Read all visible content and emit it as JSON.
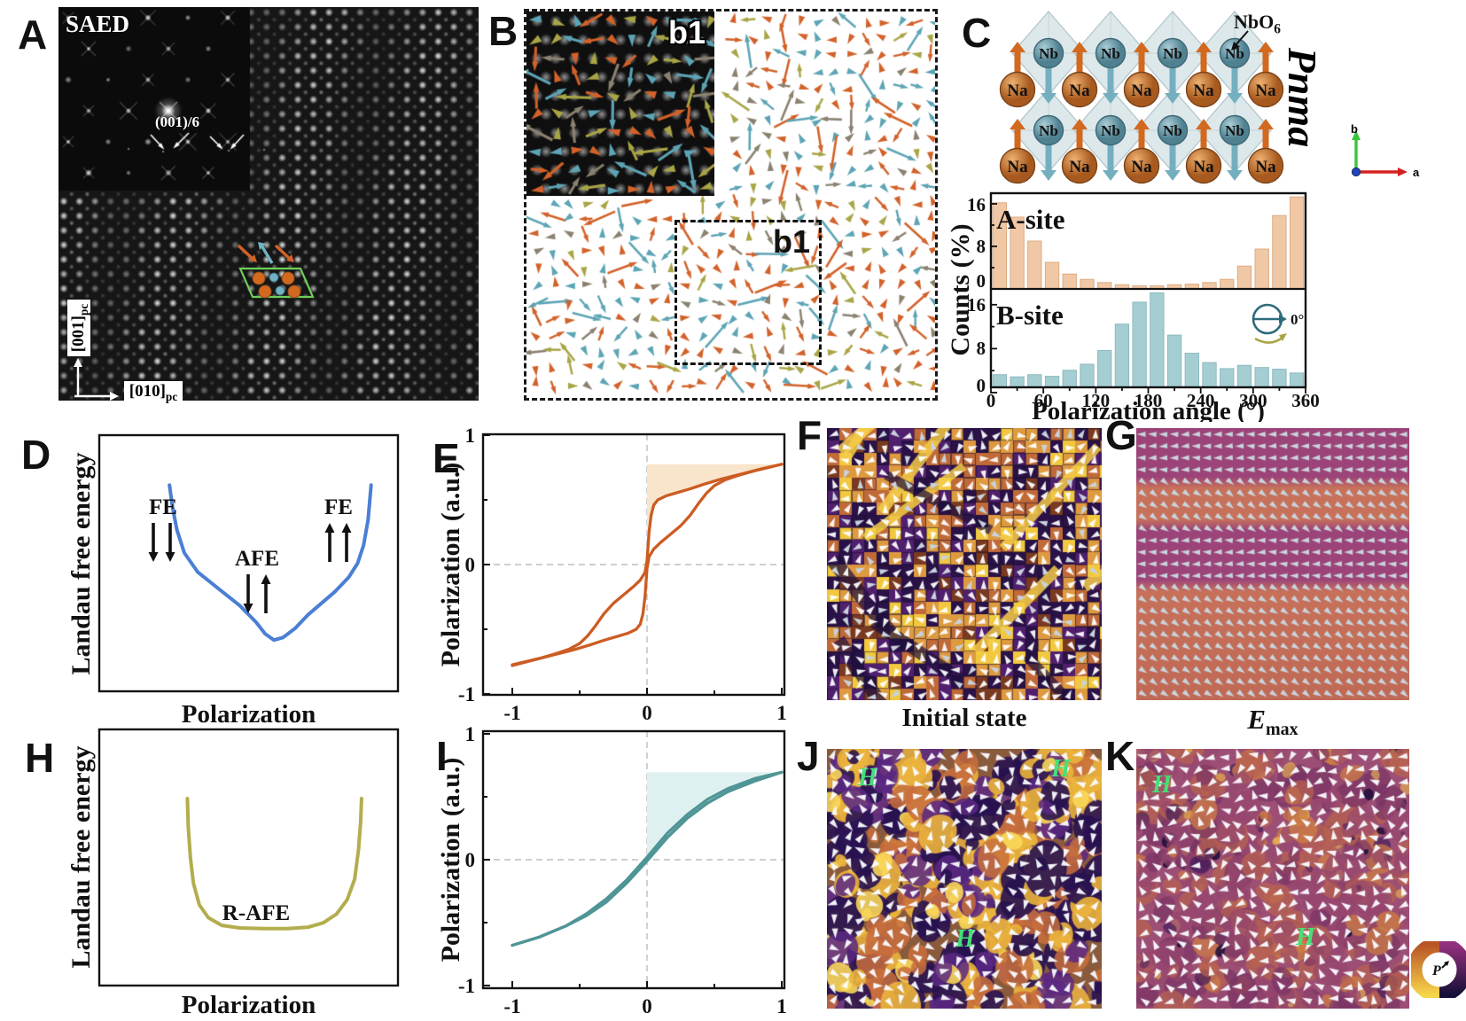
{
  "panels": {
    "a": "A",
    "b": "B",
    "c": "C",
    "d": "D",
    "e": "E",
    "f": "F",
    "g": "G",
    "h": "H",
    "i": "I",
    "j": "J",
    "k": "K"
  },
  "panel_a": {
    "saed_label": "SAED",
    "reflection_label": "(001)/6",
    "axis_v_main": "[001]",
    "axis_v_sub": "pc",
    "axis_h_main": "[010]",
    "axis_h_sub": "pc"
  },
  "panel_b": {
    "inset_label": "b1",
    "box_label": "b1"
  },
  "panel_c": {
    "atom_a_label": "Na",
    "atom_b_label": "Nb",
    "nbo_main": "NbO",
    "nbo_sub": "6",
    "space_group": "Pnma",
    "axis_a": "a",
    "axis_b": "b",
    "a_site": "A-site",
    "b_site": "B-site",
    "angle_ref": "0°",
    "ylabel": "Counts (%)",
    "xlabel": "Polarization angle (°)",
    "yticks": [
      "0",
      "8",
      "16"
    ],
    "xticks": [
      "0",
      "60",
      "120",
      "180",
      "240",
      "300",
      "360"
    ]
  },
  "panel_d": {
    "ylabel": "Landau free energy",
    "xlabel": "Polarization",
    "fe_left": "FE",
    "afe": "AFE",
    "fe_right": "FE"
  },
  "panel_e": {
    "ylabel": "Polarization (a.u.)",
    "yticks": [
      "1",
      "0",
      "-1"
    ],
    "xticks": [
      "-1",
      "0",
      "1"
    ]
  },
  "panel_f": {
    "caption": "Initial state"
  },
  "panel_g": {
    "caption_main": "E",
    "caption_sub": "max"
  },
  "panel_h": {
    "ylabel": "Landau free energy",
    "xlabel": "Polarization",
    "curve_label": "R-AFE"
  },
  "panel_i": {
    "ylabel": "Polarization (a.u.)",
    "yticks": [
      "1",
      "0",
      "-1"
    ],
    "xticks": [
      "-1",
      "0",
      "1"
    ]
  },
  "panel_j": {
    "h1": "H",
    "h2": "H",
    "h3": "H"
  },
  "panel_k": {
    "h1": "H",
    "h2": "H"
  },
  "wheel": {
    "label": "P"
  },
  "colors": {
    "arrow_orange": "#d2622a",
    "arrow_teal": "#5da4b5",
    "arrow_olive": "#a8a546",
    "arrow_gray": "#8b8170",
    "na_sphere": "#c9752f",
    "nb_sphere": "#63929f",
    "octahedron": "#dce8eb",
    "a_site_bar": "#f0c8a6",
    "b_site_bar": "#a5ced3",
    "landau_fe_curve": "#4a7fd4",
    "landau_rafe_curve": "#b3ad4e",
    "loop_afe_curve": "#cc5c22",
    "loop_afe_shade": "#f9e4cc",
    "loop_rafe_curve": "#4f9596",
    "loop_rafe_shade": "#dff0f0",
    "h_marker_green": "#45e077",
    "axis_b_green": "#3bc43b",
    "axis_a_red": "#d42020",
    "axis_c_blue": "#2244bb"
  },
  "chart_data": [
    {
      "id": "hist_a_site",
      "type": "bar",
      "title": "A-site",
      "xlabel": "Polarization angle (°)",
      "ylabel": "Counts (%)",
      "x_bin_start": 0,
      "x_bin_width": 20,
      "xlim": [
        0,
        360
      ],
      "yticks": [
        0,
        8,
        16
      ],
      "values": [
        16.2,
        13.5,
        9.0,
        5.0,
        2.8,
        1.8,
        1.2,
        0.8,
        0.6,
        0.6,
        0.8,
        0.9,
        1.2,
        1.8,
        4.3,
        7.5,
        13.8,
        17.3
      ]
    },
    {
      "id": "hist_b_site",
      "type": "bar",
      "title": "B-site",
      "xlabel": "Polarization angle (°)",
      "ylabel": "Counts (%)",
      "x_bin_start": 0,
      "x_bin_width": 20,
      "xlim": [
        0,
        360
      ],
      "yticks": [
        0,
        8,
        16
      ],
      "values": [
        2.3,
        1.9,
        2.3,
        2.0,
        3.1,
        4.2,
        6.7,
        11.5,
        15.5,
        17.2,
        9.5,
        6.2,
        4.5,
        3.4,
        4.0,
        3.6,
        3.3,
        2.6
      ]
    },
    {
      "id": "loop_afe",
      "type": "line",
      "ylabel": "Polarization (a.u.)",
      "xticks": [
        -1,
        0,
        1
      ],
      "yticks": [
        1,
        0,
        -1
      ],
      "saturation": 0.775,
      "series": [
        {
          "name": "increasing-branch",
          "points": [
            [
              -1,
              -0.78
            ],
            [
              -0.85,
              -0.74
            ],
            [
              -0.7,
              -0.7
            ],
            [
              -0.55,
              -0.66
            ],
            [
              -0.42,
              -0.62
            ],
            [
              -0.32,
              -0.585
            ],
            [
              -0.22,
              -0.555
            ],
            [
              -0.14,
              -0.53
            ],
            [
              -0.08,
              -0.5
            ],
            [
              -0.05,
              -0.46
            ],
            [
              -0.03,
              -0.38
            ],
            [
              -0.015,
              -0.25
            ],
            [
              0,
              -0.03
            ],
            [
              0.015,
              0.06
            ],
            [
              0.05,
              0.12
            ],
            [
              0.1,
              0.17
            ],
            [
              0.17,
              0.23
            ],
            [
              0.25,
              0.3
            ],
            [
              0.32,
              0.38
            ],
            [
              0.38,
              0.47
            ],
            [
              0.44,
              0.55
            ],
            [
              0.5,
              0.61
            ],
            [
              0.58,
              0.655
            ],
            [
              0.68,
              0.69
            ],
            [
              0.8,
              0.725
            ],
            [
              0.9,
              0.75
            ],
            [
              1,
              0.775
            ]
          ]
        },
        {
          "name": "decreasing-branch",
          "points": [
            [
              1,
              0.775
            ],
            [
              0.85,
              0.74
            ],
            [
              0.7,
              0.7
            ],
            [
              0.55,
              0.66
            ],
            [
              0.42,
              0.62
            ],
            [
              0.32,
              0.585
            ],
            [
              0.22,
              0.555
            ],
            [
              0.14,
              0.53
            ],
            [
              0.08,
              0.5
            ],
            [
              0.05,
              0.46
            ],
            [
              0.03,
              0.38
            ],
            [
              0.015,
              0.25
            ],
            [
              0,
              0.03
            ],
            [
              -0.015,
              -0.06
            ],
            [
              -0.05,
              -0.12
            ],
            [
              -0.1,
              -0.17
            ],
            [
              -0.17,
              -0.23
            ],
            [
              -0.25,
              -0.3
            ],
            [
              -0.32,
              -0.38
            ],
            [
              -0.38,
              -0.47
            ],
            [
              -0.44,
              -0.55
            ],
            [
              -0.5,
              -0.61
            ],
            [
              -0.58,
              -0.655
            ],
            [
              -0.68,
              -0.69
            ],
            [
              -0.8,
              -0.725
            ],
            [
              -0.9,
              -0.75
            ],
            [
              -1,
              -0.775
            ]
          ]
        }
      ]
    },
    {
      "id": "loop_rafe",
      "type": "line",
      "ylabel": "Polarization (a.u.)",
      "xticks": [
        -1,
        0,
        1
      ],
      "yticks": [
        1,
        0,
        -1
      ],
      "saturation": 0.695,
      "series": [
        {
          "name": "increasing-branch",
          "points": [
            [
              -1,
              -0.68
            ],
            [
              -0.8,
              -0.615
            ],
            [
              -0.6,
              -0.525
            ],
            [
              -0.45,
              -0.445
            ],
            [
              -0.3,
              -0.335
            ],
            [
              -0.15,
              -0.185
            ],
            [
              0,
              -0.01
            ],
            [
              0.15,
              0.175
            ],
            [
              0.3,
              0.33
            ],
            [
              0.45,
              0.45
            ],
            [
              0.6,
              0.54
            ],
            [
              0.8,
              0.625
            ],
            [
              1,
              0.695
            ]
          ]
        },
        {
          "name": "decreasing-branch",
          "points": [
            [
              1,
              0.695
            ],
            [
              0.8,
              0.645
            ],
            [
              0.6,
              0.565
            ],
            [
              0.45,
              0.48
            ],
            [
              0.3,
              0.36
            ],
            [
              0.15,
              0.21
            ],
            [
              0,
              0.02
            ],
            [
              -0.15,
              -0.16
            ],
            [
              -0.3,
              -0.31
            ],
            [
              -0.45,
              -0.43
            ],
            [
              -0.6,
              -0.525
            ],
            [
              -0.8,
              -0.615
            ],
            [
              -1,
              -0.68
            ]
          ]
        }
      ]
    },
    {
      "id": "landau_fe_afe",
      "type": "line",
      "ylabel": "Landau free energy",
      "xlabel": "Polarization",
      "points_norm": [
        [
          0.235,
          0.195
        ],
        [
          0.245,
          0.28
        ],
        [
          0.26,
          0.37
        ],
        [
          0.285,
          0.46
        ],
        [
          0.33,
          0.535
        ],
        [
          0.4,
          0.6
        ],
        [
          0.47,
          0.665
        ],
        [
          0.525,
          0.73
        ],
        [
          0.555,
          0.775
        ],
        [
          0.585,
          0.8
        ],
        [
          0.615,
          0.79
        ],
        [
          0.655,
          0.755
        ],
        [
          0.7,
          0.7
        ],
        [
          0.745,
          0.655
        ],
        [
          0.79,
          0.61
        ],
        [
          0.835,
          0.555
        ],
        [
          0.865,
          0.5
        ],
        [
          0.885,
          0.43
        ],
        [
          0.9,
          0.33
        ],
        [
          0.91,
          0.195
        ]
      ]
    },
    {
      "id": "landau_rafe",
      "type": "line",
      "ylabel": "Landau free energy",
      "xlabel": "Polarization",
      "points_norm": [
        [
          0.295,
          0.27
        ],
        [
          0.298,
          0.38
        ],
        [
          0.305,
          0.5
        ],
        [
          0.315,
          0.6
        ],
        [
          0.335,
          0.685
        ],
        [
          0.365,
          0.735
        ],
        [
          0.41,
          0.765
        ],
        [
          0.47,
          0.775
        ],
        [
          0.55,
          0.778
        ],
        [
          0.63,
          0.778
        ],
        [
          0.7,
          0.772
        ],
        [
          0.75,
          0.755
        ],
        [
          0.795,
          0.72
        ],
        [
          0.83,
          0.665
        ],
        [
          0.855,
          0.585
        ],
        [
          0.868,
          0.47
        ],
        [
          0.875,
          0.36
        ],
        [
          0.878,
          0.27
        ]
      ]
    }
  ]
}
